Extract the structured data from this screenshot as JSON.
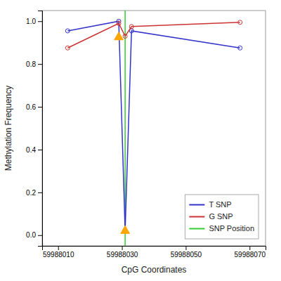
{
  "chart_data": {
    "type": "line",
    "xlabel": "CpG Coordinates",
    "ylabel": "Methylation Frequency",
    "x": [
      59988013,
      59988029,
      59988031,
      59988033,
      59988067
    ],
    "series": [
      {
        "name": "T SNP",
        "color": "#3333cc",
        "marker": "circle",
        "values": [
          0.955,
          1.0,
          0.02,
          0.955,
          0.875
        ]
      },
      {
        "name": "G SNP",
        "color": "#cc3333",
        "marker": "circle",
        "values": [
          0.875,
          0.99,
          0.93,
          0.975,
          0.995
        ]
      },
      {
        "name": "SNP Position",
        "type": "vline",
        "color": "#33cc33",
        "x": [
          59988031
        ]
      },
      {
        "type": "scatter",
        "marker": "triangle",
        "color": "#ffa500",
        "x": [
          59988029,
          59988031
        ],
        "values": [
          0.925,
          0.02
        ]
      }
    ],
    "xlim": [
      59988005,
      59988075
    ],
    "ylim": [
      -0.05,
      1.05
    ],
    "xticks": [
      59988010,
      59988030,
      59988050,
      59988070
    ],
    "yticks": [
      {
        "value": 0,
        "label": "0.0"
      },
      0.2,
      0.4,
      0.6,
      0.8,
      {
        "value": 1,
        "label": "1.0"
      }
    ],
    "grid": false,
    "legend": "lower right"
  }
}
